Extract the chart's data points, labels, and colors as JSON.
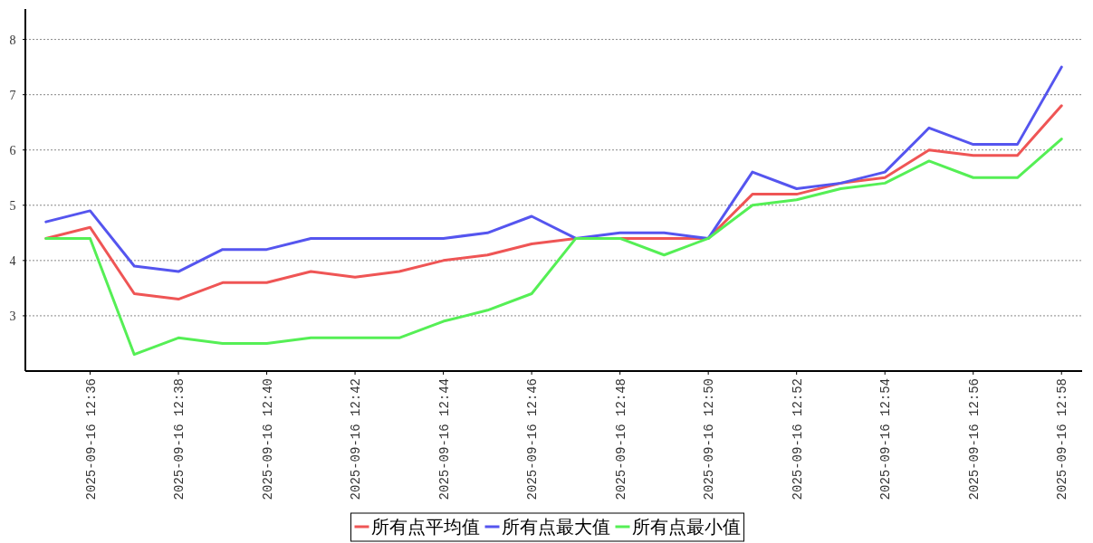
{
  "chart_data": {
    "type": "line",
    "x": [
      "2025-09-16T12:35",
      "2025-09-16T12:36",
      "2025-09-16T12:37",
      "2025-09-16T12:38",
      "2025-09-16T12:39",
      "2025-09-16T12:40",
      "2025-09-16T12:41",
      "2025-09-16T12:42",
      "2025-09-16T12:43",
      "2025-09-16T12:44",
      "2025-09-16T12:45",
      "2025-09-16T12:46",
      "2025-09-16T12:47",
      "2025-09-16T12:48",
      "2025-09-16T12:49",
      "2025-09-16T12:50",
      "2025-09-16T12:51",
      "2025-09-16T12:52",
      "2025-09-16T12:53",
      "2025-09-16T12:54",
      "2025-09-16T12:55",
      "2025-09-16T12:56",
      "2025-09-16T12:57",
      "2025-09-16T12:58"
    ],
    "series": [
      {
        "name": "所有点平均值",
        "color": "#ef5555",
        "values": [
          4.4,
          4.6,
          3.4,
          3.3,
          3.6,
          3.6,
          3.8,
          3.7,
          3.8,
          4.0,
          4.1,
          4.3,
          4.4,
          4.4,
          4.4,
          4.4,
          5.2,
          5.2,
          5.4,
          5.5,
          6.0,
          5.9,
          5.9,
          6.8
        ]
      },
      {
        "name": "所有点最大值",
        "color": "#5555ef",
        "values": [
          4.7,
          4.9,
          3.9,
          3.8,
          4.2,
          4.2,
          4.4,
          4.4,
          4.4,
          4.4,
          4.5,
          4.8,
          4.4,
          4.5,
          4.5,
          4.4,
          5.6,
          5.3,
          5.4,
          5.6,
          6.4,
          6.1,
          6.1,
          7.5
        ]
      },
      {
        "name": "所有点最小值",
        "color": "#55ef55",
        "values": [
          4.4,
          4.4,
          2.3,
          2.6,
          2.5,
          2.5,
          2.6,
          2.6,
          2.6,
          2.9,
          3.1,
          3.4,
          4.4,
          4.4,
          4.1,
          4.4,
          5.0,
          5.1,
          5.3,
          5.4,
          5.8,
          5.5,
          5.5,
          6.2
        ]
      }
    ],
    "xlim": [
      "2025-09-16T12:34:32",
      "2025-09-16T12:58:28"
    ],
    "xticks": [
      {
        "value": "2025-09-16T12:36",
        "label": "2025-09-16 12:36"
      },
      {
        "value": "2025-09-16T12:38",
        "label": "2025-09-16 12:38"
      },
      {
        "value": "2025-09-16T12:40",
        "label": "2025-09-16 12:40"
      },
      {
        "value": "2025-09-16T12:42",
        "label": "2025-09-16 12:42"
      },
      {
        "value": "2025-09-16T12:44",
        "label": "2025-09-16 12:44"
      },
      {
        "value": "2025-09-16T12:46",
        "label": "2025-09-16 12:46"
      },
      {
        "value": "2025-09-16T12:48",
        "label": "2025-09-16 12:48"
      },
      {
        "value": "2025-09-16T12:50",
        "label": "2025-09-16 12:50"
      },
      {
        "value": "2025-09-16T12:52",
        "label": "2025-09-16 12:52"
      },
      {
        "value": "2025-09-16T12:54",
        "label": "2025-09-16 12:54"
      },
      {
        "value": "2025-09-16T12:56",
        "label": "2025-09-16 12:56"
      },
      {
        "value": "2025-09-16T12:58",
        "label": "2025-09-16 12:58"
      }
    ],
    "ylim": [
      2,
      8.55
    ],
    "yticks": [
      3,
      4,
      5,
      6,
      7,
      8
    ],
    "grid": "y",
    "legend": "bottom",
    "marker": "none",
    "line_style": "solid"
  }
}
